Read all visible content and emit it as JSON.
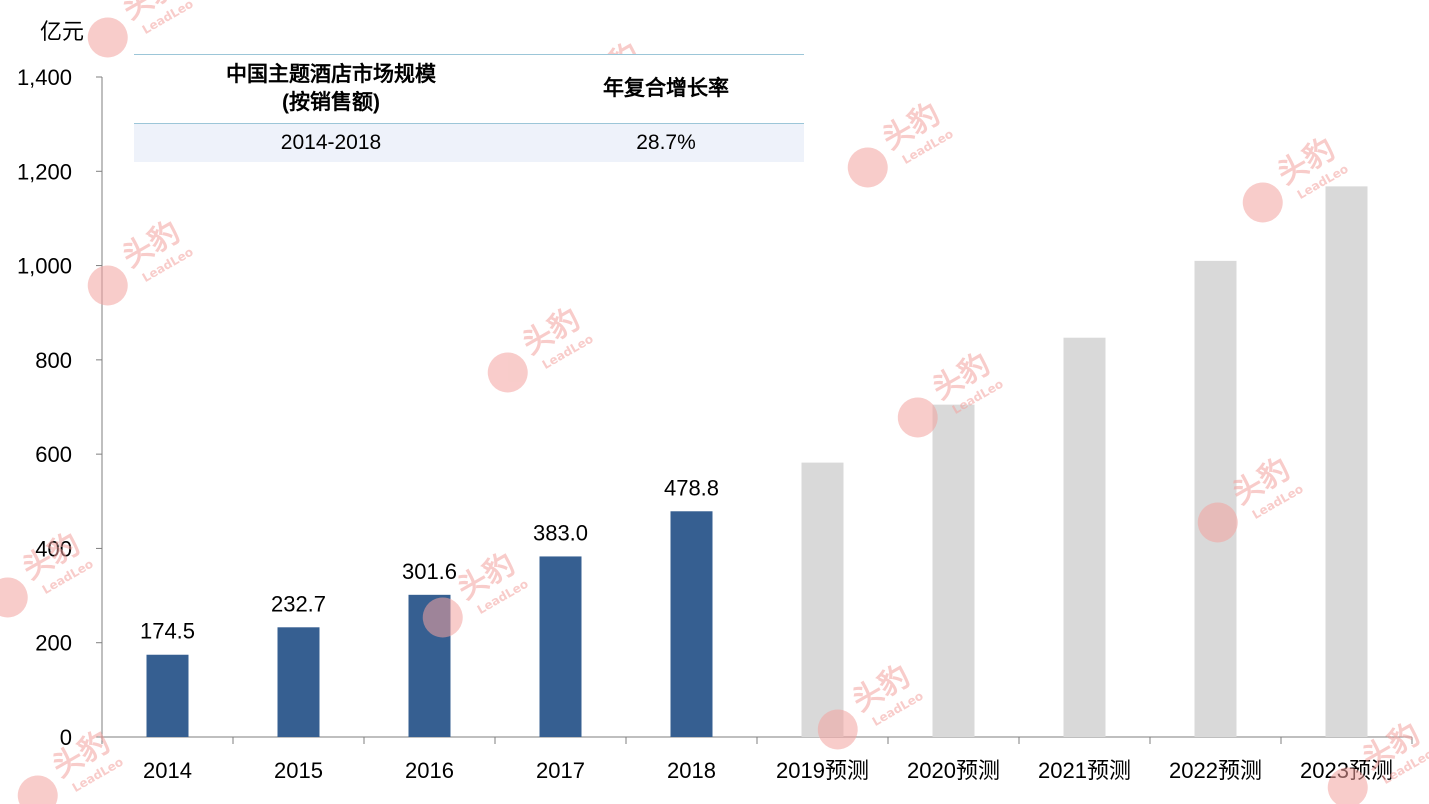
{
  "chart_data": {
    "type": "bar",
    "ylabel": "亿元",
    "ylim": [
      0,
      1400
    ],
    "yticks": [
      0,
      200,
      400,
      600,
      800,
      1000,
      1200,
      1400
    ],
    "ytick_labels": [
      "0",
      "200",
      "400",
      "600",
      "800",
      "1,000",
      "1,200",
      "1,400"
    ],
    "categories": [
      "2014",
      "2015",
      "2016",
      "2017",
      "2018",
      "2019预测",
      "2020预测",
      "2021预测",
      "2022预测",
      "2023预测"
    ],
    "values": [
      174.5,
      232.7,
      301.6,
      383.0,
      478.8,
      582,
      705,
      847,
      1010,
      1168
    ],
    "data_labels": [
      "174.5",
      "232.7",
      "301.6",
      "383.0",
      "478.8",
      "",
      "",
      "",
      "",
      ""
    ],
    "forecast_start_index": 5,
    "colors": {
      "actual": "#365f91",
      "forecast": "#d9d9d9"
    },
    "grid": false,
    "legend": "none"
  },
  "summary_table": {
    "header_col1_line1": "中国主题酒店市场规模",
    "header_col1_line2": "(按销售额)",
    "header_col2": "年复合增长率",
    "row_period": "2014-2018",
    "row_rate": "28.7%"
  },
  "watermark": {
    "text_cn": "头豹",
    "text_en": "LeadLeo",
    "color": "#f4a3a0"
  }
}
